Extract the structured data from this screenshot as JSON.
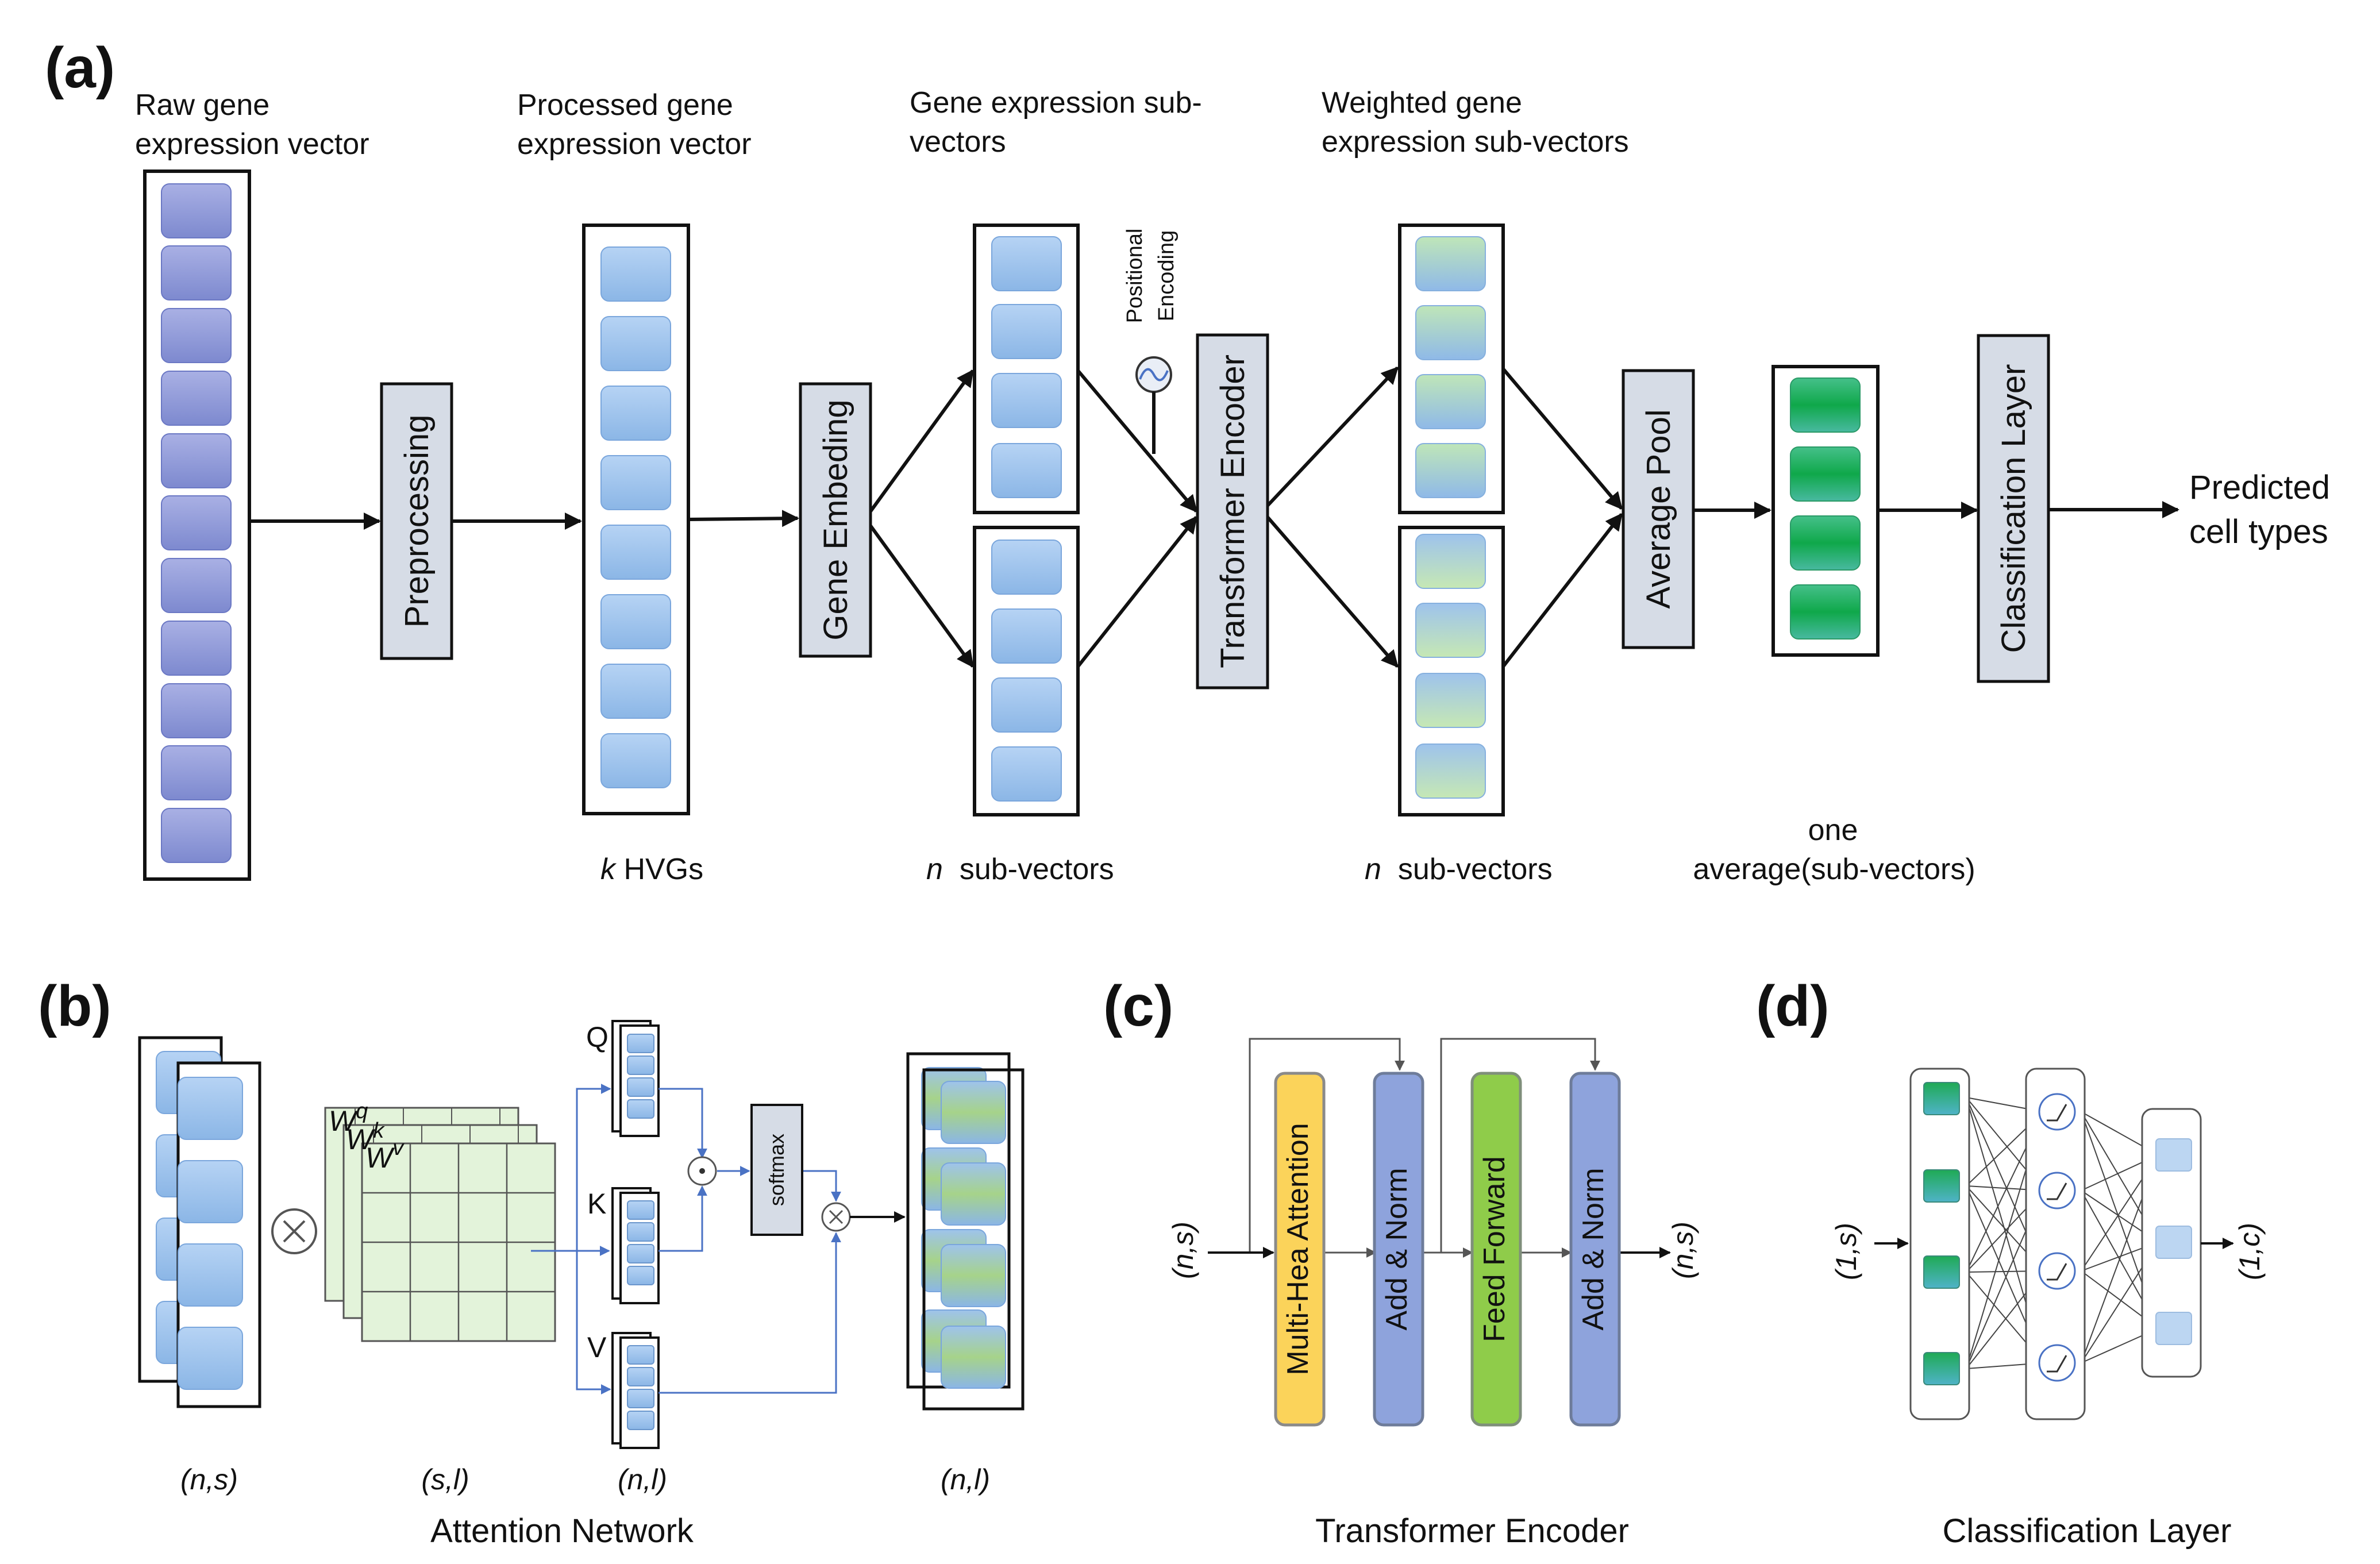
{
  "panel_a": {
    "letter": "(a)",
    "label_raw_1": "Raw gene",
    "label_raw_2": "expression vector",
    "label_proc_1": "Processed gene",
    "label_proc_2": "expression vector",
    "label_sub_1": "Gene expression sub-",
    "label_sub_2": "vectors",
    "label_weighted_1": "Weighted gene",
    "label_weighted_2": "expression sub-vectors",
    "preprocessing": "Preprocessing",
    "gene_embedding": "Gene Embeding",
    "transformer_encoder": "Transformer Encoder",
    "average_pool": "Average Pool",
    "classification_layer": "Classification Layer",
    "positional_1": "Positional",
    "positional_2": "Encoding",
    "predicted_1": "Predicted",
    "predicted_2": "cell types",
    "k_var": "k",
    "hvgs": " HVGs",
    "n_var_1": "n",
    "subvectors_1": "  sub-vectors",
    "n_var_2": "n",
    "subvectors_2": "  sub-vectors",
    "one": "one",
    "average_sub": "average(sub-vectors)"
  },
  "panel_b": {
    "letter": "(b)",
    "q": "Q",
    "k": "K",
    "v": "V",
    "softmax": "softmax",
    "w_q": "W",
    "sup_q": "q",
    "w_k": "W",
    "sup_k": "k",
    "w_v": "W",
    "sup_v": "v",
    "dim_ns": "(n,s)",
    "dim_sl": "(s,l)",
    "dim_nl_1": "(n,l)",
    "dim_nl_2": "(n,l)",
    "caption": "Attention Network"
  },
  "panel_c": {
    "letter": "(c)",
    "mha": "Multi-Hea Attention",
    "addnorm_1": "Add & Norm",
    "ff": "Feed Forward",
    "addnorm_2": "Add & Norm",
    "in_dim": "(n,s)",
    "out_dim": "(n,s)",
    "caption": "Transformer Encoder"
  },
  "panel_d": {
    "letter": "(d)",
    "in_dim": "(1,s)",
    "out_dim": "(1,c)",
    "caption": "Classification Layer"
  },
  "colors": {
    "purple_cell": "#8f99d8",
    "blue_cell": "#9ec3ec",
    "grey_box": "#d6dce6",
    "yellow": "#fbd35a",
    "blue_norm": "#8ea3dc",
    "green_ff": "#8fcc4a",
    "grid_green": "#e3f3da"
  }
}
